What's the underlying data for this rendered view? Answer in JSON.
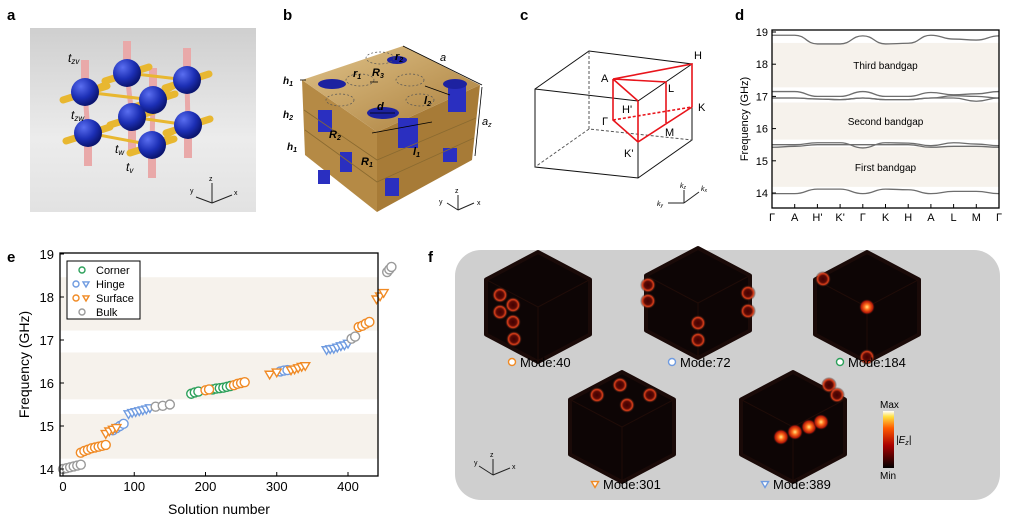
{
  "panel_letters": {
    "a": "a",
    "b": "b",
    "c": "c",
    "d": "d",
    "e": "e",
    "f": "f"
  },
  "panel_a": {
    "labels": {
      "tzv": {
        "base": "t",
        "sub": "zv"
      },
      "tzw": {
        "base": "t",
        "sub": "zw"
      },
      "tw": {
        "base": "t",
        "sub": "w"
      },
      "tv": {
        "base": "t",
        "sub": "v"
      }
    },
    "axes": {
      "x": "x",
      "y": "y",
      "z": "z"
    },
    "colors": {
      "site": "#1c2fb5",
      "intra_rod": "#e8b730",
      "z_rod": "#e9a9a9",
      "background": "#d9d9d9"
    }
  },
  "panel_b": {
    "labels": {
      "a": {
        "base": "a",
        "sub": ""
      },
      "az": {
        "base": "a",
        "sub": "z"
      },
      "h1_top": {
        "base": "h",
        "sub": "1"
      },
      "h2": {
        "base": "h",
        "sub": "2"
      },
      "h1": {
        "base": "h",
        "sub": "1"
      },
      "R1": {
        "base": "R",
        "sub": "1"
      },
      "R2": {
        "base": "R",
        "sub": "2"
      },
      "R3": {
        "base": "R",
        "sub": "3"
      },
      "r1": {
        "base": "r",
        "sub": "1"
      },
      "r2": {
        "base": "r",
        "sub": "2"
      },
      "d": {
        "base": "d",
        "sub": ""
      },
      "l1": {
        "base": "l",
        "sub": "1"
      },
      "l2": {
        "base": "l",
        "sub": "2"
      }
    },
    "axes": {
      "x": "x",
      "y": "y",
      "z": "z"
    },
    "colors": {
      "metal": "#c9a25e",
      "cylinder": "#2a2fc0"
    }
  },
  "panel_c": {
    "points": {
      "A": "A",
      "H": "H",
      "L": "L",
      "Hp": "H'",
      "K": "K",
      "G": "Γ",
      "M": "M",
      "Kp": "K'"
    },
    "axes": {
      "kx": {
        "base": "k",
        "sub": "x"
      },
      "ky": {
        "base": "k",
        "sub": "y"
      },
      "kz": {
        "base": "k",
        "sub": "z"
      }
    },
    "path_color": "#e8141b"
  },
  "chart_data": [
    {
      "panel": "d",
      "type": "line",
      "ylabel": "Frequency (GHz)",
      "xlabel": "",
      "categories": [
        "Γ",
        "A",
        "H'",
        "K'",
        "Γ",
        "K",
        "H",
        "A",
        "L",
        "M",
        "Γ"
      ],
      "ylim": [
        13.5,
        19
      ],
      "yticks": [
        14,
        15,
        16,
        17,
        18,
        19
      ],
      "grid": false,
      "bandgaps": [
        {
          "label": "First bandgap",
          "range": [
            14.19,
            15.43
          ]
        },
        {
          "label": "Second bandgap",
          "range": [
            15.66,
            16.81
          ]
        },
        {
          "label": "Third bandgap",
          "range": [
            17.28,
            18.66
          ]
        }
      ],
      "series": [
        {
          "values": [
            13.98,
            13.98,
            14.12,
            14.12,
            13.98,
            14.12,
            14.1,
            13.98,
            14.05,
            14.05,
            13.98
          ]
        },
        {
          "values": [
            15.42,
            15.45,
            15.5,
            15.5,
            15.5,
            15.5,
            15.5,
            15.42,
            15.45,
            15.45,
            15.42
          ]
        },
        {
          "values": [
            15.5,
            15.5,
            15.56,
            15.56,
            15.4,
            15.56,
            15.55,
            15.47,
            15.56,
            15.52,
            15.47
          ]
        },
        {
          "values": [
            16.95,
            16.95,
            16.92,
            16.9,
            16.95,
            16.9,
            16.9,
            16.95,
            16.95,
            16.85,
            16.95
          ]
        },
        {
          "values": [
            16.95,
            16.95,
            16.92,
            16.9,
            16.95,
            16.9,
            16.9,
            16.95,
            17.02,
            17.0,
            16.95
          ]
        },
        {
          "values": [
            17.15,
            17.15,
            17.0,
            17.0,
            17.15,
            17.0,
            17.0,
            17.12,
            17.05,
            17.08,
            17.15
          ]
        },
        {
          "values": [
            18.9,
            18.9,
            18.63,
            18.63,
            18.88,
            18.63,
            18.65,
            18.9,
            18.78,
            18.75,
            18.88
          ]
        }
      ],
      "line_color": "#6e6e6e",
      "gap_color": "#f6f2ec"
    },
    {
      "panel": "e",
      "type": "scatter",
      "xlabel": "Solution number",
      "ylabel": "Frequency (GHz)",
      "xlim": [
        -5,
        480
      ],
      "ylim": [
        13.85,
        19
      ],
      "xticks": [
        0,
        100,
        200,
        300,
        400
      ],
      "yticks": [
        14,
        15,
        16,
        17,
        18,
        19
      ],
      "legend_position": "top-left",
      "bands": [
        [
          14.24,
          15.28
        ],
        [
          15.62,
          16.71
        ],
        [
          17.22,
          18.46
        ]
      ],
      "band_color": "#f6f2ec",
      "series": [
        {
          "name": "Corner",
          "color": "#2ca05a",
          "marker": "circle",
          "points": [
            [
              180,
              15.75
            ],
            [
              185,
              15.78
            ],
            [
              190,
              15.8
            ],
            [
              210,
              15.85
            ],
            [
              215,
              15.87
            ],
            [
              220,
              15.88
            ],
            [
              225,
              15.89
            ],
            [
              230,
              15.91
            ],
            [
              235,
              15.93
            ]
          ]
        },
        {
          "name": "Hinge",
          "color": "#6f9be0",
          "marker": "circle",
          "points": [
            [
              70,
              14.9
            ],
            [
              75,
              14.95
            ],
            [
              80,
              15.0
            ],
            [
              85,
              15.05
            ],
            [
              305,
              16.27
            ],
            [
              310,
              16.29
            ],
            [
              315,
              16.3
            ]
          ]
        },
        {
          "name": "Hinge",
          "color": "#6f9be0",
          "marker": "triangle",
          "points": [
            [
              92,
              15.28
            ],
            [
              97,
              15.31
            ],
            [
              102,
              15.33
            ],
            [
              107,
              15.35
            ],
            [
              112,
              15.37
            ],
            [
              117,
              15.39
            ],
            [
              122,
              15.42
            ],
            [
              370,
              16.77
            ],
            [
              375,
              16.79
            ],
            [
              380,
              16.8
            ],
            [
              385,
              16.83
            ],
            [
              390,
              16.86
            ],
            [
              395,
              16.88
            ],
            [
              400,
              16.92
            ]
          ]
        },
        {
          "name": "Surface",
          "color": "#f08a24",
          "marker": "circle",
          "points": [
            [
              25,
              14.38
            ],
            [
              30,
              14.42
            ],
            [
              35,
              14.45
            ],
            [
              40,
              14.48
            ],
            [
              45,
              14.5
            ],
            [
              50,
              14.52
            ],
            [
              55,
              14.54
            ],
            [
              60,
              14.56
            ],
            [
              200,
              15.83
            ],
            [
              205,
              15.85
            ],
            [
              240,
              15.95
            ],
            [
              245,
              15.98
            ],
            [
              250,
              16.0
            ],
            [
              255,
              16.02
            ],
            [
              415,
              17.3
            ],
            [
              420,
              17.33
            ],
            [
              425,
              17.38
            ],
            [
              430,
              17.42
            ]
          ]
        },
        {
          "name": "Surface",
          "color": "#f08a24",
          "marker": "triangle",
          "points": [
            [
              60,
              14.82
            ],
            [
              65,
              14.88
            ],
            [
              70,
              14.92
            ],
            [
              75,
              14.96
            ],
            [
              290,
              16.2
            ],
            [
              300,
              16.25
            ],
            [
              320,
              16.3
            ],
            [
              325,
              16.32
            ],
            [
              330,
              16.35
            ],
            [
              335,
              16.38
            ],
            [
              340,
              16.4
            ],
            [
              440,
              17.95
            ],
            [
              445,
              18.02
            ],
            [
              450,
              18.1
            ]
          ]
        },
        {
          "name": "Bulk",
          "color": "#9a9a9a",
          "marker": "circle",
          "points": [
            [
              0,
              14.0
            ],
            [
              5,
              14.02
            ],
            [
              10,
              14.04
            ],
            [
              15,
              14.06
            ],
            [
              20,
              14.08
            ],
            [
              25,
              14.1
            ],
            [
              130,
              15.45
            ],
            [
              140,
              15.47
            ],
            [
              150,
              15.5
            ],
            [
              405,
              17.03
            ],
            [
              410,
              17.08
            ],
            [
              455,
              18.58
            ],
            [
              458,
              18.64
            ],
            [
              461,
              18.7
            ]
          ]
        }
      ],
      "legend": [
        {
          "label": "Corner",
          "markers": [
            "circle"
          ],
          "color": "#2ca05a"
        },
        {
          "label": "Hinge",
          "markers": [
            "circle",
            "triangle"
          ],
          "color": "#6f9be0"
        },
        {
          "label": "Surface",
          "markers": [
            "circle",
            "triangle"
          ],
          "color": "#f08a24"
        },
        {
          "label": "Bulk",
          "markers": [
            "circle"
          ],
          "color": "#9a9a9a"
        }
      ]
    }
  ],
  "panel_f": {
    "modes": [
      {
        "label": "Mode:40",
        "marker": "circle",
        "color": "#f08a24"
      },
      {
        "label": "Mode:72",
        "marker": "circle",
        "color": "#6f9be0"
      },
      {
        "label": "Mode:184",
        "marker": "circle",
        "color": "#2ca05a"
      },
      {
        "label": "Mode:301",
        "marker": "triangle",
        "color": "#f08a24"
      },
      {
        "label": "Mode:389",
        "marker": "triangle",
        "color": "#6f9be0"
      }
    ],
    "colorbar": {
      "max": "Max",
      "min": "Min",
      "quantity": {
        "base": "|E",
        "sub": "z",
        "end": "|"
      }
    },
    "axes": {
      "x": "x",
      "y": "y",
      "z": "z"
    },
    "background": "#cfcfcf"
  }
}
